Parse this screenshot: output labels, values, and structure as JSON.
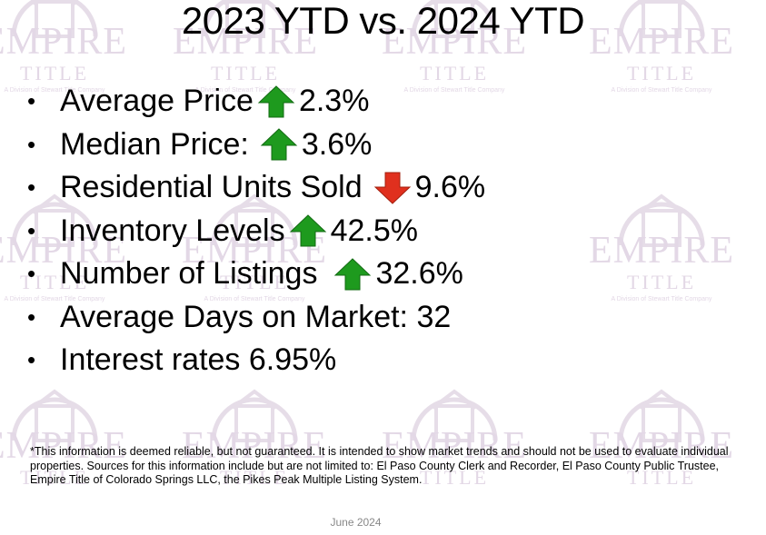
{
  "title": "2023 YTD vs. 2024 YTD",
  "bullets": [
    {
      "label": "Average Price",
      "icon": "arrow-up-icon",
      "value": "2.3%"
    },
    {
      "label": "Median Price:",
      "icon": "arrow-up-icon",
      "value": "3.6%"
    },
    {
      "label": "Residential Units Sold",
      "icon": "arrow-down-icon",
      "value": "9.6%"
    },
    {
      "label": "Inventory Levels",
      "icon": "arrow-up-icon",
      "value": "42.5%"
    },
    {
      "label": "Number of Listings",
      "icon": "arrow-up-icon",
      "value": "32.6%"
    },
    {
      "label": "Average Days on Market: 32",
      "icon": "",
      "value": ""
    },
    {
      "label": "Interest rates 6.95%",
      "icon": "",
      "value": ""
    }
  ],
  "footnote": "*This information is deemed reliable, but not guaranteed.  It is intended to show market trends and should not be used to evaluate individual properties.  Sources for this information include but are not limited to: El Paso County Clerk and Recorder, El Paso County Public Trustee, Empire Title of Colorado Springs LLC, the Pikes Peak Multiple Listing System.",
  "date": "June 2024",
  "watermark": {
    "brand": "EMPIRE",
    "sub": "TITLE",
    "tag": "A Division of Stewart Title Company"
  },
  "colors": {
    "arrow_up": "#1e9a1e",
    "arrow_down": "#e0301e",
    "watermark": "#e3d8e6"
  }
}
